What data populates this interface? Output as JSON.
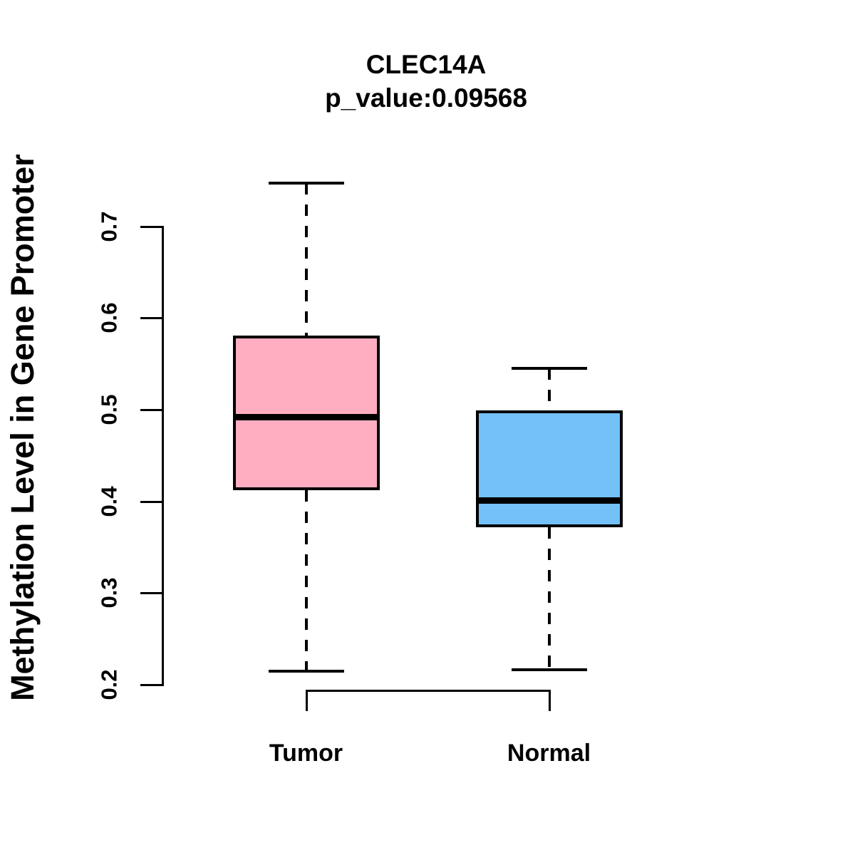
{
  "chart_data": {
    "type": "boxplot",
    "title": "CLEC14A",
    "subtitle": "p_value:0.09568",
    "ylabel": "Methylation Level in Gene Promoter",
    "xlabel": "",
    "ylim": [
      0.2,
      0.7
    ],
    "yticks": [
      "0.2",
      "0.3",
      "0.4",
      "0.5",
      "0.6",
      "0.7"
    ],
    "grid": false,
    "legend": "none",
    "categories": [
      "Tumor",
      "Normal"
    ],
    "series": [
      {
        "name": "Tumor",
        "color": "#FFAEC1",
        "whisker_low": 0.215,
        "q1": 0.412,
        "median": 0.492,
        "q3": 0.581,
        "whisker_high": 0.747
      },
      {
        "name": "Normal",
        "color": "#73C1F7",
        "whisker_low": 0.216,
        "q1": 0.372,
        "median": 0.401,
        "q3": 0.499,
        "whisker_high": 0.545
      }
    ]
  }
}
